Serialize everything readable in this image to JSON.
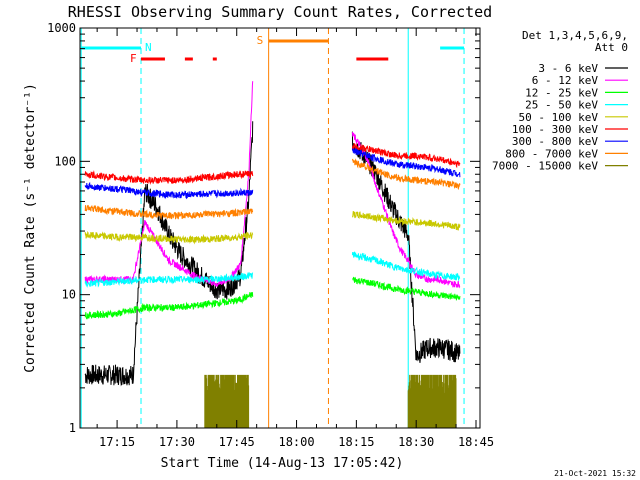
{
  "chart_data": {
    "type": "line",
    "title": "RHESSI Observing Summary Count Rates, Corrected",
    "xlabel": "Start Time (14-Aug-13 17:05:42)",
    "ylabel": "Corrected Count Rate (s⁻¹ detector⁻¹)",
    "yscale": "log",
    "ylim": [
      1,
      1000
    ],
    "xlim": [
      "17:05:42",
      "18:46:00"
    ],
    "x_tick_labels": [
      "17:15",
      "17:30",
      "17:45",
      "18:00",
      "18:15",
      "18:30",
      "18:45"
    ],
    "y_tick_labels": [
      "1",
      "10",
      "100",
      "1000"
    ],
    "grid": false,
    "legend_position": "right",
    "legend_header": [
      "Det 1,3,4,5,6,9,",
      "Att 0"
    ],
    "timestamp": "21-Oct-2021 15:32",
    "series": [
      {
        "name": "3 - 6 keV",
        "color": "#000000",
        "x": [
          "17:07",
          "17:13",
          "17:19",
          "17:22",
          "17:25",
          "17:28",
          "17:31",
          "17:34",
          "17:37",
          "17:40",
          "17:43",
          "17:46",
          "17:48",
          "17:49"
        ],
        "y": [
          2.5,
          2.5,
          2.5,
          60,
          45,
          28,
          20,
          16,
          13,
          11,
          11,
          14,
          50,
          180
        ],
        "x2": [
          "18:14",
          "18:16",
          "18:18",
          "18:20",
          "18:22",
          "18:24",
          "18:26",
          "18:28",
          "18:30",
          "18:33",
          "18:36",
          "18:39",
          "18:41"
        ],
        "y2": [
          140,
          120,
          100,
          80,
          60,
          45,
          35,
          28,
          3.5,
          4,
          4,
          3.8,
          3.5
        ]
      },
      {
        "name": "6 - 12 keV",
        "color": "#ff00ff",
        "x": [
          "17:07",
          "17:13",
          "17:19",
          "17:22",
          "17:25",
          "17:28",
          "17:31",
          "17:34",
          "17:37",
          "17:40",
          "17:43",
          "17:46",
          "17:48",
          "17:49"
        ],
        "y": [
          13,
          13,
          13,
          35,
          25,
          18,
          16,
          14,
          13,
          12,
          13,
          17,
          80,
          400
        ],
        "x2": [
          "18:14",
          "18:16",
          "18:18",
          "18:20",
          "18:22",
          "18:24",
          "18:26",
          "18:28",
          "18:30",
          "18:33",
          "18:36",
          "18:39",
          "18:41"
        ],
        "y2": [
          160,
          130,
          100,
          65,
          45,
          30,
          22,
          18,
          14,
          13,
          13,
          12,
          12
        ]
      },
      {
        "name": "12 - 25 keV",
        "color": "#00ff00",
        "x": [
          "17:07",
          "17:15",
          "17:22",
          "17:30",
          "17:38",
          "17:45",
          "17:49"
        ],
        "y": [
          7,
          7.2,
          8,
          8,
          8.5,
          9,
          10
        ],
        "x2": [
          "18:14",
          "18:20",
          "18:25",
          "18:30",
          "18:35",
          "18:41"
        ],
        "y2": [
          13,
          12,
          11,
          10.5,
          10,
          9.5
        ]
      },
      {
        "name": "25 - 50 keV",
        "color": "#00ffff",
        "x": [
          "17:07",
          "17:15",
          "17:22",
          "17:30",
          "17:38",
          "17:45",
          "17:49"
        ],
        "y": [
          12,
          12.5,
          13,
          13,
          13,
          13.5,
          14
        ],
        "x2": [
          "18:14",
          "18:20",
          "18:25",
          "18:30",
          "18:35",
          "18:41"
        ],
        "y2": [
          20,
          18,
          16,
          15,
          14,
          13.5
        ]
      },
      {
        "name": "50 - 100 keV",
        "color": "#c8c800",
        "x": [
          "17:07",
          "17:15",
          "17:22",
          "17:30",
          "17:38",
          "17:45",
          "17:49"
        ],
        "y": [
          28,
          27,
          27,
          26,
          26,
          27,
          28
        ],
        "x2": [
          "18:14",
          "18:20",
          "18:25",
          "18:30",
          "18:35",
          "18:41"
        ],
        "y2": [
          40,
          38,
          36,
          35,
          34,
          32
        ]
      },
      {
        "name": "100 - 300 keV",
        "color": "#ff0000",
        "x": [
          "17:07",
          "17:15",
          "17:22",
          "17:30",
          "17:38",
          "17:45",
          "17:49"
        ],
        "y": [
          80,
          75,
          72,
          72,
          76,
          80,
          80
        ],
        "x2": [
          "18:14",
          "18:20",
          "18:25",
          "18:30",
          "18:35",
          "18:41"
        ],
        "y2": [
          130,
          120,
          110,
          110,
          105,
          95
        ]
      },
      {
        "name": "300 - 800 keV",
        "color": "#0000ff",
        "x": [
          "17:07",
          "17:15",
          "17:22",
          "17:30",
          "17:38",
          "17:45",
          "17:49"
        ],
        "y": [
          65,
          62,
          58,
          56,
          57,
          58,
          58
        ],
        "x2": [
          "18:14",
          "18:20",
          "18:25",
          "18:30",
          "18:35",
          "18:41"
        ],
        "y2": [
          120,
          105,
          95,
          92,
          88,
          80
        ]
      },
      {
        "name": "800 - 7000 keV",
        "color": "#ff8000",
        "x": [
          "17:07",
          "17:15",
          "17:22",
          "17:30",
          "17:38",
          "17:45",
          "17:49"
        ],
        "y": [
          45,
          42,
          40,
          39,
          40,
          41,
          42
        ],
        "x2": [
          "18:14",
          "18:20",
          "18:25",
          "18:30",
          "18:35",
          "18:41"
        ],
        "y2": [
          100,
          85,
          75,
          72,
          70,
          65
        ]
      },
      {
        "name": "7000 - 15000 keV",
        "color": "#808000",
        "bursts": [
          [
            "17:37",
            "17:48"
          ],
          [
            "18:28",
            "18:40"
          ]
        ],
        "burst_range": [
          1,
          2.5
        ]
      }
    ],
    "flags": {
      "N": {
        "color": "#00ffff",
        "segments": [
          [
            "17:06",
            "17:21"
          ],
          [
            "18:36",
            "18:42"
          ]
        ]
      },
      "F": {
        "color": "#ff0000",
        "segments": [
          [
            "17:21",
            "17:27"
          ],
          [
            "17:32",
            "17:34"
          ],
          [
            "17:39",
            "17:40"
          ],
          [
            "18:15",
            "18:23"
          ]
        ]
      },
      "S": {
        "color": "#ff8000",
        "segments": [
          [
            "17:53",
            "18:08"
          ]
        ]
      }
    },
    "vlines": [
      {
        "time": "17:06",
        "color": "#00ffff",
        "style": "solid"
      },
      {
        "time": "17:21",
        "color": "#00ffff",
        "style": "dashed"
      },
      {
        "time": "17:53",
        "color": "#ff8000",
        "style": "solid"
      },
      {
        "time": "18:08",
        "color": "#ff8000",
        "style": "dashed"
      },
      {
        "time": "18:28",
        "color": "#00ffff",
        "style": "solid"
      },
      {
        "time": "18:42",
        "color": "#00ffff",
        "style": "dashed"
      }
    ]
  }
}
